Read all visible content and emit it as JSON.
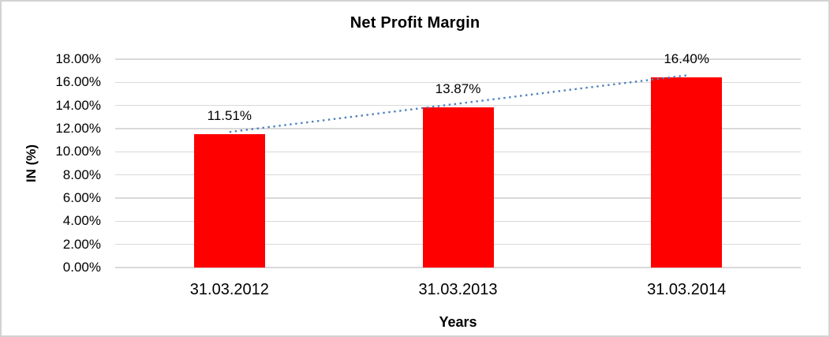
{
  "chart_data": {
    "type": "bar",
    "title": "Net Profit Margin",
    "xlabel": "Years",
    "ylabel": "IN (%)",
    "categories": [
      "31.03.2012",
      "31.03.2013",
      "31.03.2014"
    ],
    "series": [
      {
        "name": "Net Profit Margin",
        "values": [
          11.51,
          13.87,
          16.4
        ],
        "data_labels": [
          "11.51%",
          "13.87%",
          "16.40%"
        ],
        "color": "#ff0000"
      }
    ],
    "ylim": [
      0,
      18
    ],
    "ytick_step": 2,
    "ytick_labels": [
      "0.00%",
      "2.00%",
      "4.00%",
      "6.00%",
      "8.00%",
      "10.00%",
      "12.00%",
      "14.00%",
      "16.00%",
      "18.00%"
    ],
    "grid": true,
    "gridline_color": "#d9d9d9",
    "legend": "none",
    "background_color": "#ffffff",
    "border_color": "#d2d2d2",
    "trendline": {
      "type": "linear",
      "style": "dotted",
      "color": "#4f81bd"
    }
  }
}
